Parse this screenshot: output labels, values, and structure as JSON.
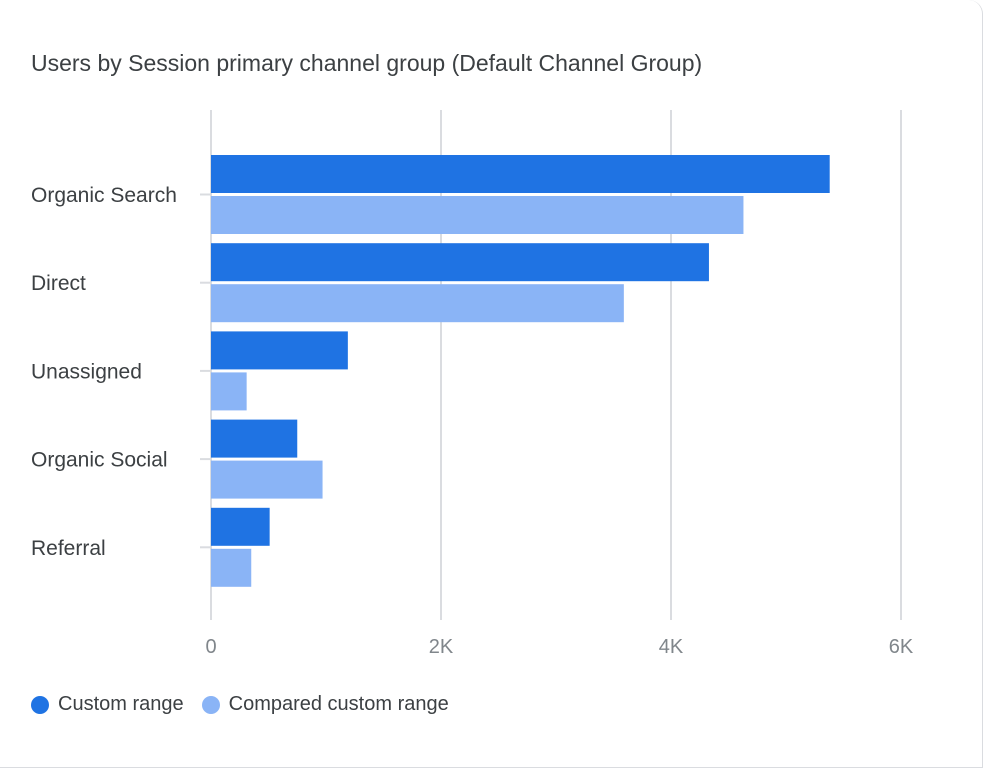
{
  "colors": {
    "primary": "#1f73e3",
    "compare": "#8ab4f6",
    "grid": "#dadce0",
    "text": "#3c4043",
    "tick": "#80868b"
  },
  "chart_data": {
    "type": "bar",
    "orientation": "horizontal",
    "title": "Users by Session primary channel group (Default Channel Group)",
    "categories": [
      "Organic Search",
      "Direct",
      "Unassigned",
      "Organic Social",
      "Referral"
    ],
    "series": [
      {
        "name": "Custom range",
        "values": [
          5380,
          4330,
          1190,
          750,
          510
        ]
      },
      {
        "name": "Compared custom range",
        "values": [
          4630,
          3590,
          310,
          970,
          350
        ]
      }
    ],
    "xlim": [
      0,
      6000
    ],
    "xticks": [
      0,
      2000,
      4000,
      6000
    ],
    "xtick_labels": [
      "0",
      "2K",
      "4K",
      "6K"
    ],
    "grid": true,
    "legend_position": "bottom-left"
  }
}
